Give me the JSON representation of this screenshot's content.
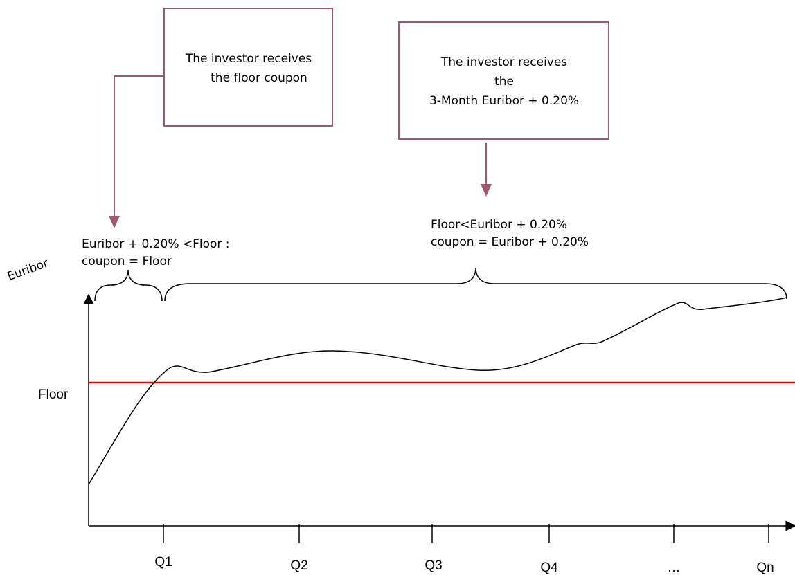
{
  "axis": {
    "y_label": "Euribor",
    "x_ticks": [
      "Q1",
      "Q2",
      "Q3",
      "Q4",
      "…",
      "Qn"
    ]
  },
  "floor": {
    "label": "Floor",
    "color": "#e00000"
  },
  "callouts": [
    {
      "lines": [
        "The investor receives",
        "the floor coupon"
      ],
      "color": "#a05a6e"
    },
    {
      "lines": [
        "The investor receives",
        "the",
        "3-Month Euribor + 0.20%"
      ],
      "color": "#a05a6e"
    }
  ],
  "regions": [
    {
      "lines": [
        "Euribor + 0.20% <Floor :",
        "coupon = Floor"
      ]
    },
    {
      "lines": [
        "Floor<Euribor + 0.20%",
        "coupon = Euribor + 0.20%"
      ]
    }
  ],
  "colors": {
    "callout_border": "#a05a6e",
    "floor_line": "#e00000",
    "curve": "#000000"
  }
}
